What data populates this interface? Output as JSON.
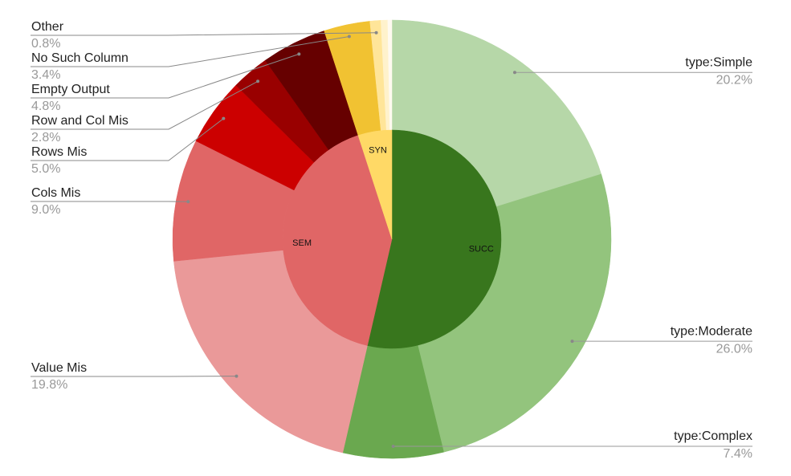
{
  "chart_data": {
    "type": "sunburst",
    "series": [
      {
        "name": "SUCC",
        "color": "#38761d",
        "categories": [
          "type:Simple",
          "type:Moderate",
          "type:Complex"
        ],
        "values": [
          20.2,
          26.0,
          7.4
        ],
        "value_labels": [
          "20.2%",
          "26.0%",
          "7.4%"
        ],
        "colors": [
          "#b6d7a8",
          "#93c47d",
          "#6aa84f"
        ]
      },
      {
        "name": "SEM",
        "color": "#e06666",
        "categories": [
          "Value Mis",
          "Cols Mis",
          "Rows Mis",
          "Row and Col Mis",
          "Empty Output"
        ],
        "values": [
          19.8,
          9.0,
          5.0,
          2.8,
          4.8
        ],
        "value_labels": [
          "19.8%",
          "9.0%",
          "5.0%",
          "2.8%",
          "4.8%"
        ],
        "colors": [
          "#ea9999",
          "#e06666",
          "#cc0000",
          "#990000",
          "#660000"
        ]
      },
      {
        "name": "SYN",
        "color": "#ffd966",
        "categories": [
          "No Such Column",
          "Other",
          null,
          null
        ],
        "values": [
          3.4,
          0.8,
          0.5,
          0.3
        ],
        "value_labels": [
          "3.4%",
          "0.8%",
          null,
          null
        ],
        "colors": [
          "#f1c232",
          "#ffe599",
          "#fff2cc",
          "#fffaf0"
        ]
      }
    ]
  }
}
